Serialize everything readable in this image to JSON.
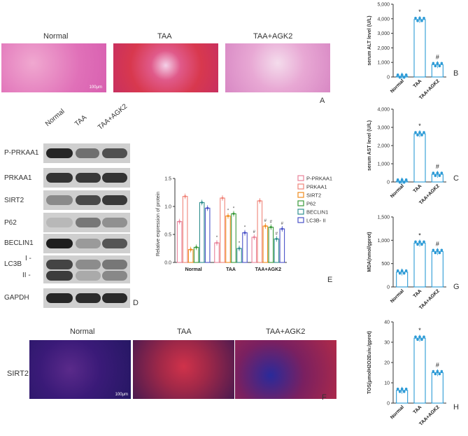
{
  "panelA": {
    "labels": [
      "Normal",
      "TAA",
      "TAA+AGK2"
    ],
    "letter": "A",
    "scalebar": "100μm"
  },
  "panelD": {
    "letter": "D",
    "groups": [
      "Normal",
      "TAA",
      "TAA+AGK2"
    ],
    "proteins": [
      "P-PRKAA1",
      "PRKAA1",
      "SIRT2",
      "P62",
      "BECLIN1",
      "LC3B",
      "GAPDH"
    ],
    "lc3_marks": [
      "I -",
      "II -"
    ]
  },
  "panelF": {
    "letter": "F",
    "labels": [
      "Normal",
      "TAA",
      "TAA+AGK2"
    ],
    "row_label": "SIRT2",
    "scalebar": "100μm"
  },
  "chart_data": [
    {
      "id": "E",
      "type": "bar",
      "panel_letter": "E",
      "ylabel": "Relative expression of protein",
      "ylim": [
        0,
        1.5
      ],
      "yticks": [
        "0.0",
        "0.5",
        "1.0",
        "1.5"
      ],
      "categories": [
        "Normal",
        "TAA",
        "TAA+AGK2"
      ],
      "series": [
        {
          "name": "P-PRKAA1",
          "color": "#e8829a",
          "values": [
            0.73,
            0.35,
            0.45
          ],
          "marks": [
            "",
            "*",
            "#"
          ]
        },
        {
          "name": "PRKAA1",
          "color": "#f0857a",
          "values": [
            1.18,
            1.15,
            1.1
          ],
          "marks": [
            "",
            "",
            ""
          ]
        },
        {
          "name": "SIRT2",
          "color": "#f08c1e",
          "values": [
            0.23,
            0.83,
            0.65
          ],
          "marks": [
            "",
            "*",
            "#"
          ]
        },
        {
          "name": "P62",
          "color": "#3a9a3a",
          "values": [
            0.27,
            0.87,
            0.63
          ],
          "marks": [
            "",
            "*",
            "#"
          ]
        },
        {
          "name": "BECLIN1",
          "color": "#2f8f8f",
          "values": [
            1.07,
            0.25,
            0.42
          ],
          "marks": [
            "",
            "*",
            "#"
          ]
        },
        {
          "name": "LC3B- II",
          "color": "#4a52c8",
          "values": [
            0.97,
            0.53,
            0.6
          ],
          "marks": [
            "",
            "*",
            "#"
          ]
        }
      ]
    },
    {
      "id": "B",
      "type": "bar",
      "panel_letter": "B",
      "ylabel": "serum ALT level (U/L)",
      "ylim": [
        0,
        5000
      ],
      "yticks": [
        "0",
        "1,000",
        "2,000",
        "3,000",
        "4,000",
        "5,000"
      ],
      "categories": [
        "Normal",
        "TAA",
        "TAA+AGK2"
      ],
      "values": [
        60,
        3950,
        850
      ],
      "marks": [
        "",
        "*",
        "#"
      ]
    },
    {
      "id": "C",
      "type": "bar",
      "panel_letter": "C",
      "ylabel": "serum AST level (U/L)",
      "ylim": [
        0,
        4000
      ],
      "yticks": [
        "0",
        "1,000",
        "2,000",
        "3,000",
        "4,000"
      ],
      "categories": [
        "Normal",
        "TAA",
        "TAA+AGK2"
      ],
      "values": [
        50,
        2650,
        420
      ],
      "marks": [
        "",
        "*",
        "#"
      ]
    },
    {
      "id": "G",
      "type": "bar",
      "panel_letter": "G",
      "ylabel": "MDA(nmol/gprot)",
      "ylim": [
        0,
        1500
      ],
      "yticks": [
        "0",
        "500",
        "1,000",
        "1,500"
      ],
      "categories": [
        "Normal",
        "TAA",
        "TAA+AGK2"
      ],
      "values": [
        320,
        940,
        760
      ],
      "marks": [
        "",
        "*",
        "#"
      ]
    },
    {
      "id": "H",
      "type": "bar",
      "panel_letter": "H",
      "ylabel": "TOS(μmolH2O2Euiv./gprot)",
      "ylim": [
        0,
        40
      ],
      "yticks": [
        "0",
        "10",
        "20",
        "30",
        "40"
      ],
      "categories": [
        "Normal",
        "TAA",
        "TAA+AGK2"
      ],
      "values": [
        6.3,
        32,
        15
      ],
      "marks": [
        "",
        "*",
        "#"
      ]
    }
  ]
}
